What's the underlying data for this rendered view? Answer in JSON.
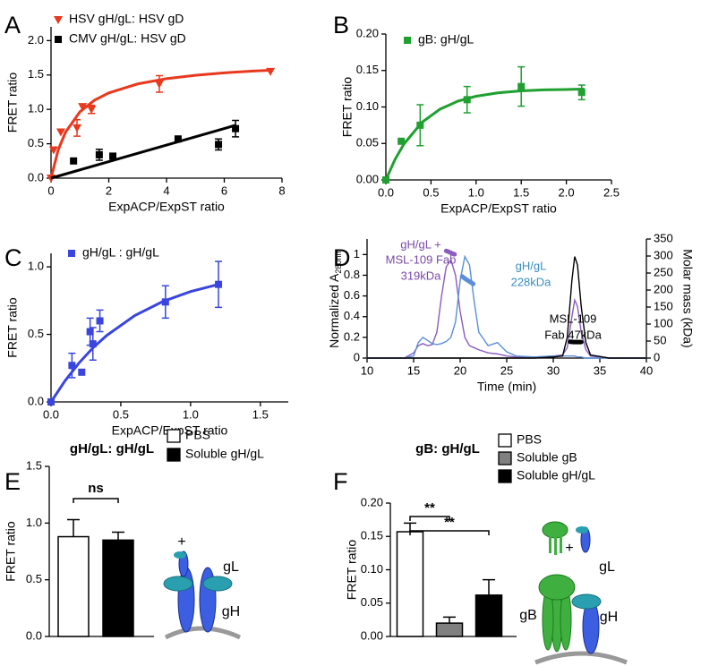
{
  "chart_data": [
    {
      "panel": "A",
      "type": "scatter",
      "xlabel": "ExpACP/ExpST ratio",
      "ylabel": "FRET ratio",
      "xlim": [
        0,
        8
      ],
      "xticks": [
        0,
        2,
        4,
        6,
        8
      ],
      "ylim": [
        0,
        2.2
      ],
      "yticks": [
        {
          "value": 0,
          "label": "0.0"
        },
        0.5,
        {
          "value": 1,
          "label": "1.0"
        },
        1.5,
        {
          "value": 2,
          "label": "2.0"
        }
      ],
      "legend_position": "upper left",
      "series": [
        {
          "name": "HSV gH/gL: HSV gD",
          "color": "#e8391e",
          "marker": "triangle-down",
          "x": [
            0,
            0.09,
            0.34,
            0.9,
            1.09,
            1.4,
            3.75,
            7.6
          ],
          "values": [
            0,
            0.41,
            0.67,
            0.73,
            1.04,
            1.0,
            1.37,
            1.55
          ],
          "errors": [
            null,
            null,
            null,
            0.12,
            null,
            0.06,
            0.12,
            null
          ],
          "fit_x": [
            0,
            0.25,
            0.5,
            1,
            1.5,
            2,
            3,
            4,
            5,
            6,
            7,
            7.6
          ],
          "fit_values": [
            0,
            0.413,
            0.667,
            0.964,
            1.132,
            1.239,
            1.37,
            1.446,
            1.496,
            1.531,
            1.557,
            1.569
          ]
        },
        {
          "name": "CMV gH/gL: HSV gD",
          "color": "#000000",
          "marker": "square",
          "x": [
            0.78,
            1.67,
            2.14,
            4.4,
            5.8,
            6.39
          ],
          "values": [
            0.25,
            0.34,
            0.32,
            0.57,
            0.49,
            0.72
          ],
          "errors": [
            null,
            0.08,
            null,
            null,
            0.08,
            0.12
          ],
          "fit_x": [
            0,
            6.4
          ],
          "fit_values": [
            0,
            0.77
          ]
        }
      ]
    },
    {
      "panel": "B",
      "type": "scatter",
      "xlabel": "ExpACP/ExpST ratio",
      "ylabel": "FRET ratio",
      "xlim": [
        0,
        2.5
      ],
      "xticks": [
        {
          "value": 0,
          "label": "0.0"
        },
        0.5,
        {
          "value": 1,
          "label": "1.0"
        },
        1.5,
        {
          "value": 2,
          "label": "2.0"
        },
        2.5
      ],
      "ylim": [
        0,
        0.2
      ],
      "yticks": [
        {
          "value": 0,
          "label": "0.00"
        },
        0.05,
        {
          "value": 0.1,
          "label": "0.10"
        },
        0.15,
        {
          "value": 0.2,
          "label": "0.20"
        }
      ],
      "legend_position": "upper left",
      "series": [
        {
          "name": "gB: gH/gL",
          "color": "#1fa030",
          "marker": "square",
          "x": [
            0,
            0.17,
            0.38,
            0.9,
            1.5,
            2.17
          ],
          "values": [
            0,
            0.053,
            0.075,
            0.11,
            0.128,
            0.12
          ],
          "errors": [
            null,
            null,
            0.028,
            0.018,
            0.027,
            0.01
          ],
          "fit_x": [
            0,
            0.1,
            0.2,
            0.4,
            0.6,
            0.8,
            1,
            1.25,
            1.5,
            1.75,
            2,
            2.2
          ],
          "fit_values": [
            0,
            0.0277,
            0.0492,
            0.079,
            0.097,
            0.1081,
            0.1147,
            0.1195,
            0.1221,
            0.1234,
            0.124,
            0.1245
          ]
        }
      ]
    },
    {
      "panel": "C",
      "type": "scatter",
      "xlabel": "ExpACP/ExpST ratio",
      "ylabel": "FRET ratio",
      "xlim": [
        0,
        1.7
      ],
      "xticks": [
        {
          "value": 0,
          "label": "0.0"
        },
        0.5,
        {
          "value": 1,
          "label": "1.0"
        },
        1.5
      ],
      "ylim": [
        0,
        1.1
      ],
      "yticks": [
        {
          "value": 0,
          "label": "0.0"
        },
        0.5,
        {
          "value": 1,
          "label": "1.0"
        }
      ],
      "legend_position": "upper left",
      "series": [
        {
          "name": "gH/gL : gH/gL",
          "color": "#3a45e0",
          "marker": "square",
          "x": [
            0,
            0.15,
            0.22,
            0.28,
            0.3,
            0.35,
            0.82,
            1.2
          ],
          "values": [
            0,
            0.27,
            0.22,
            0.52,
            0.43,
            0.6,
            0.74,
            0.87
          ],
          "errors": [
            null,
            0.09,
            null,
            0.1,
            0.12,
            0.08,
            0.12,
            0.17
          ],
          "fit_x": [
            0,
            0.1,
            0.2,
            0.3,
            0.4,
            0.6,
            0.8,
            1,
            1.2
          ],
          "fit_values": [
            0,
            0.156,
            0.288,
            0.4,
            0.493,
            0.639,
            0.743,
            0.817,
            0.87
          ]
        }
      ]
    },
    {
      "panel": "D",
      "type": "line",
      "xlabel": "Time (min)",
      "ylabel": [
        "Normalized A",
        "280nm"
      ],
      "y2label": "Molar mass (kDa)",
      "xlim": [
        10,
        40
      ],
      "xticks": [
        10,
        15,
        20,
        25,
        30,
        35,
        40
      ],
      "ylim": [
        0,
        1.15
      ],
      "yticks": [
        0,
        0.2,
        0.4,
        0.6,
        0.8,
        1
      ],
      "y2lim": [
        0,
        350
      ],
      "y2ticks": [
        0,
        50,
        100,
        150,
        200,
        250,
        300,
        350
      ],
      "x": [
        10,
        12,
        14,
        15,
        15.5,
        16,
        16.5,
        17,
        17.5,
        18,
        18.5,
        19,
        19.5,
        20,
        20.5,
        21,
        21.5,
        22,
        23,
        24,
        25,
        26,
        28,
        30,
        31,
        31.5,
        32,
        32.3,
        32.6,
        33,
        33.5,
        34,
        36,
        40
      ],
      "annotations": [
        "gH/gL +",
        "MSL-109 Fab",
        "319kDa",
        "gH/gL",
        "228kDa",
        "MSL-109",
        "Fab 47kDa"
      ],
      "series": [
        {
          "color": "#8a5cc0",
          "values": [
            0,
            0,
            0,
            0.05,
            0.12,
            0.14,
            0.12,
            0.13,
            0.25,
            0.6,
            0.88,
            0.95,
            0.8,
            0.45,
            0.2,
            0.12,
            0.1,
            0.08,
            0.05,
            0.04,
            0.02,
            0.01,
            0.01,
            0.02,
            0.03,
            0.1,
            0.4,
            0.56,
            0.5,
            0.25,
            0.08,
            0.02,
            0,
            0
          ]
        },
        {
          "color": "#5a8ed8",
          "values": [
            0,
            0,
            0,
            0.02,
            0.15,
            0.2,
            0.17,
            0.14,
            0.13,
            0.14,
            0.16,
            0.2,
            0.35,
            0.75,
            0.98,
            0.9,
            0.55,
            0.25,
            0.12,
            0.15,
            0.06,
            0.02,
            0.01,
            0.02,
            0.02,
            0.02,
            0.02,
            0.02,
            0.01,
            0.01,
            0,
            0,
            0,
            0
          ]
        },
        {
          "color": "#000000",
          "values": [
            0,
            0,
            0,
            0,
            0,
            0,
            0,
            0,
            0,
            0,
            0,
            0,
            0,
            0,
            0,
            0,
            0,
            0,
            0,
            0,
            0,
            0,
            0,
            0.01,
            0.02,
            0.2,
            0.75,
            0.98,
            0.9,
            0.5,
            0.15,
            0.03,
            0,
            0
          ]
        },
        {
          "color": "#8a5cc0",
          "axis": "y2",
          "x": [
            18.5,
            18.8,
            19.1,
            19.4
          ],
          "values": [
            315,
            312,
            308,
            305
          ]
        },
        {
          "color": "#5a8ed8",
          "axis": "y2",
          "x": [
            20.2,
            20.6,
            21,
            21.4
          ],
          "values": [
            240,
            232,
            225,
            218
          ]
        },
        {
          "color": "#000000",
          "axis": "y2",
          "x": [
            31.8,
            32.2,
            32.6,
            33
          ],
          "values": [
            48,
            47,
            47,
            47
          ]
        }
      ]
    },
    {
      "panel": "E",
      "type": "bar",
      "title": "gH/gL: gH/gL",
      "ylabel": "FRET ratio",
      "ylim": [
        0,
        1.5
      ],
      "yticks": [
        {
          "value": 0,
          "label": "0.0"
        },
        0.5,
        {
          "value": 1,
          "label": "1.0"
        },
        1.5
      ],
      "categories": [
        null,
        null
      ],
      "values": [
        0.88,
        0.85
      ],
      "errors": [
        0.15,
        0.07
      ],
      "colors": [
        "#ffffff",
        "#000000"
      ],
      "legend": [
        "PBS",
        "Soluble gH/gL"
      ],
      "annotations": [
        "ns"
      ],
      "diagram_labels": [
        "+",
        "gL",
        "gH"
      ]
    },
    {
      "panel": "F",
      "type": "bar",
      "title": "gB: gH/gL",
      "ylabel": "FRET ratio",
      "ylim": [
        0,
        0.2
      ],
      "yticks": [
        {
          "value": 0,
          "label": "0.00"
        },
        0.05,
        {
          "value": 0.1,
          "label": "0.10"
        },
        0.15,
        {
          "value": 0.2,
          "label": "0.20"
        }
      ],
      "categories": [
        null,
        null,
        null
      ],
      "values": [
        0.157,
        0.02,
        0.062
      ],
      "errors": [
        0.013,
        0.009,
        0.023
      ],
      "colors": [
        "#ffffff",
        "#808080",
        "#000000"
      ],
      "legend": [
        "PBS",
        "Soluble gB",
        "Soluble gH/gL"
      ],
      "annotations": [
        "**",
        "**"
      ],
      "diagram_labels": [
        "gB",
        "+",
        "gL",
        "gH"
      ]
    }
  ]
}
